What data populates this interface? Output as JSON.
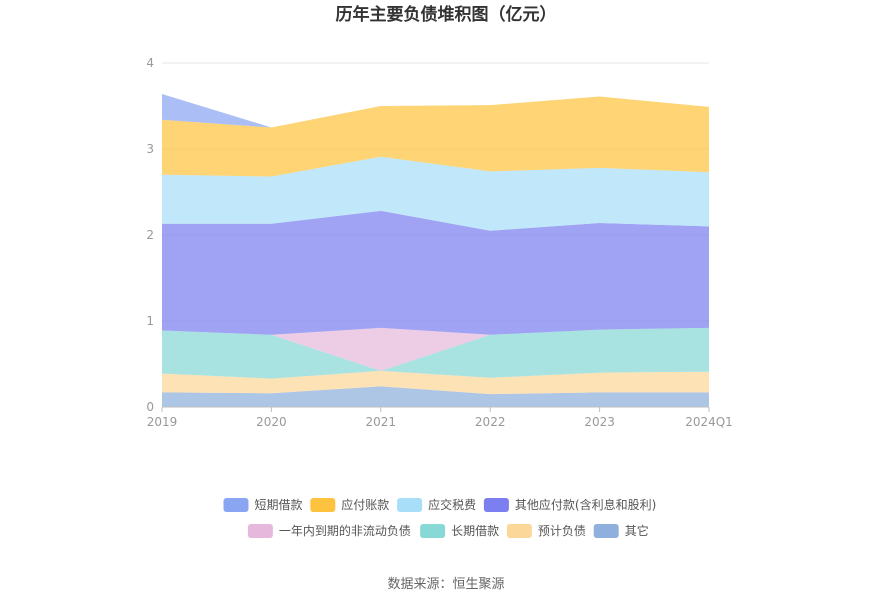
{
  "chart_data": {
    "type": "area",
    "title": "历年主要负债堆积图（亿元）",
    "categories": [
      "2019",
      "2020",
      "2021",
      "2022",
      "2023",
      "2024Q1"
    ],
    "ylim": [
      0,
      4
    ],
    "yticks": [
      "0",
      "1",
      "2",
      "3",
      "4"
    ],
    "grid": true,
    "legend_position": "bottom",
    "stacked": true,
    "series": [
      {
        "name": "其它",
        "color": "#8fb0dc",
        "values": [
          0.17,
          0.16,
          0.24,
          0.15,
          0.17,
          0.17
        ]
      },
      {
        "name": "预计负债",
        "color": "#fcd79a",
        "values": [
          0.22,
          0.17,
          0.18,
          0.19,
          0.23,
          0.24
        ]
      },
      {
        "name": "长期借款",
        "color": "#88d8d6",
        "values": [
          0.5,
          0.51,
          0.0,
          0.5,
          0.5,
          0.51
        ]
      },
      {
        "name": "一年内到期的非流动负债",
        "color": "#e6b8dc",
        "values": [
          0.0,
          0.0,
          0.5,
          0.0,
          0.0,
          0.0
        ]
      },
      {
        "name": "其他应付款(含利息和股利)",
        "color": "#7b7ff0",
        "values": [
          1.24,
          1.29,
          1.36,
          1.21,
          1.24,
          1.18
        ]
      },
      {
        "name": "应交税费",
        "color": "#a8def8",
        "values": [
          0.57,
          0.55,
          0.63,
          0.69,
          0.64,
          0.63
        ]
      },
      {
        "name": "应付账款",
        "color": "#fdc33e",
        "values": [
          0.64,
          0.57,
          0.59,
          0.77,
          0.83,
          0.76
        ]
      },
      {
        "name": "短期借款",
        "color": "#8aa6f3",
        "values": [
          0.3,
          0.0,
          0.0,
          0.0,
          0.0,
          0.0
        ]
      }
    ],
    "legend_order": [
      "短期借款",
      "应付账款",
      "应交税费",
      "其他应付款(含利息和股利)",
      "一年内到期的非流动负债",
      "长期借款",
      "预计负债",
      "其它"
    ]
  },
  "source_text": "数据来源：恒生聚源"
}
